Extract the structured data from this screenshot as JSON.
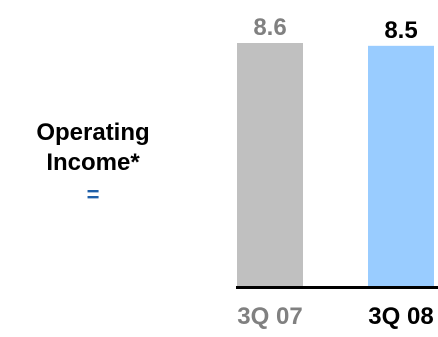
{
  "side_label": {
    "line1": "Operating",
    "line2": "Income*",
    "symbol": "="
  },
  "chart_data": {
    "type": "bar",
    "categories": [
      "3Q 07",
      "3Q 08"
    ],
    "values": [
      8.6,
      8.5
    ],
    "value_labels": [
      "8.6",
      "8.5"
    ],
    "ylim": [
      0,
      8.6
    ],
    "colors": [
      "#c0c0c0",
      "#99ccff"
    ],
    "value_label_colors": [
      "#808080",
      "#000000"
    ],
    "category_label_colors": [
      "#808080",
      "#000000"
    ],
    "axis_color": "#000000",
    "grid": false,
    "legend": "none"
  }
}
